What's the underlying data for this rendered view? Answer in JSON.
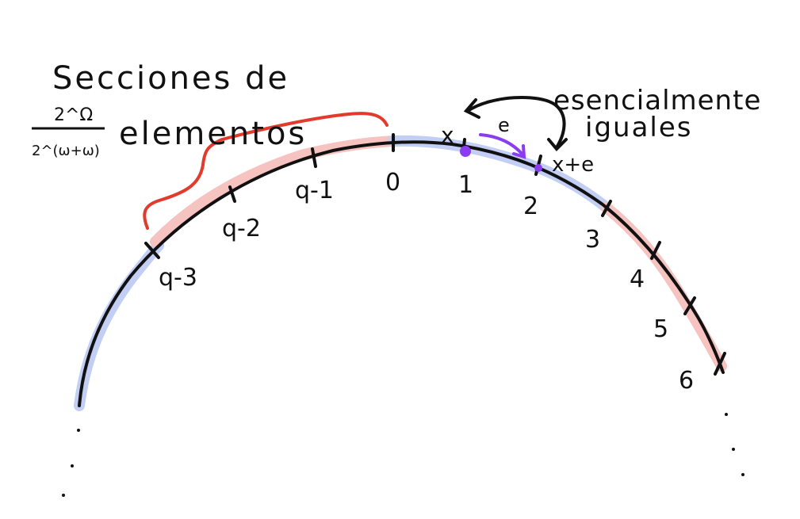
{
  "heading": {
    "line1": "Secciones de",
    "fraction_numerator": "2^Ω",
    "fraction_denominator": "2^(ω+ω)",
    "line2": "elementos"
  },
  "annotation": {
    "line1": "esencialmente",
    "line2": "iguales"
  },
  "ticks": [
    "q-3",
    "q-2",
    "q-1",
    "0",
    "1",
    "2",
    "3",
    "4",
    "5",
    "6"
  ],
  "point_labels": {
    "x": "x",
    "e": "e",
    "x_plus_e": "x+e"
  },
  "colors": {
    "ink": "#111111",
    "highlight_red": "#f4b9b6",
    "highlight_blue": "#b8c6f2",
    "brace_red": "#e23b2e",
    "purple": "#8a3df0"
  }
}
